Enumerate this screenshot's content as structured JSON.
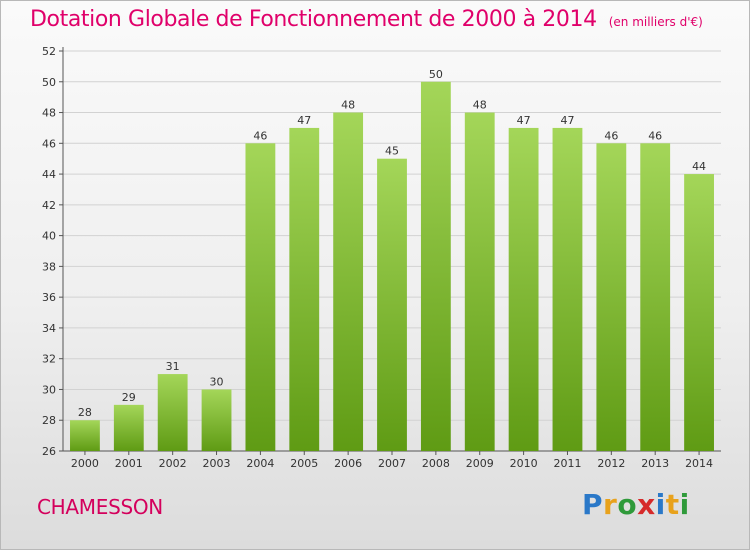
{
  "title": "Dotation Globale de Fonctionnement de 2000 à 2014",
  "unit_note": "(en milliers d'€)",
  "commune": "CHAMESSON",
  "logo": {
    "text": "Proxiti",
    "letters": [
      {
        "char": "P",
        "color": "#2a78c8"
      },
      {
        "char": "r",
        "color": "#e8a21c"
      },
      {
        "char": "o",
        "color": "#2f9a3a"
      },
      {
        "char": "x",
        "color": "#d62a2a"
      },
      {
        "char": "i",
        "color": "#2a78c8"
      },
      {
        "char": "t",
        "color": "#e8a21c"
      },
      {
        "char": "i",
        "color": "#2f9a3a"
      }
    ]
  },
  "colors": {
    "bar_top": "#a4d659",
    "bar_bottom": "#5f9b14",
    "title": "#e0006a"
  },
  "chart_data": {
    "type": "bar",
    "categories": [
      "2000",
      "2001",
      "2002",
      "2003",
      "2004",
      "2005",
      "2006",
      "2007",
      "2008",
      "2009",
      "2010",
      "2011",
      "2012",
      "2013",
      "2014"
    ],
    "values": [
      28,
      29,
      31,
      30,
      46,
      47,
      48,
      45,
      50,
      48,
      47,
      47,
      46,
      46,
      44
    ],
    "ylim": [
      26,
      52
    ],
    "yticks": [
      26,
      28,
      30,
      32,
      34,
      36,
      38,
      40,
      42,
      44,
      46,
      48,
      50,
      52
    ],
    "grid": true,
    "legend": "none"
  }
}
